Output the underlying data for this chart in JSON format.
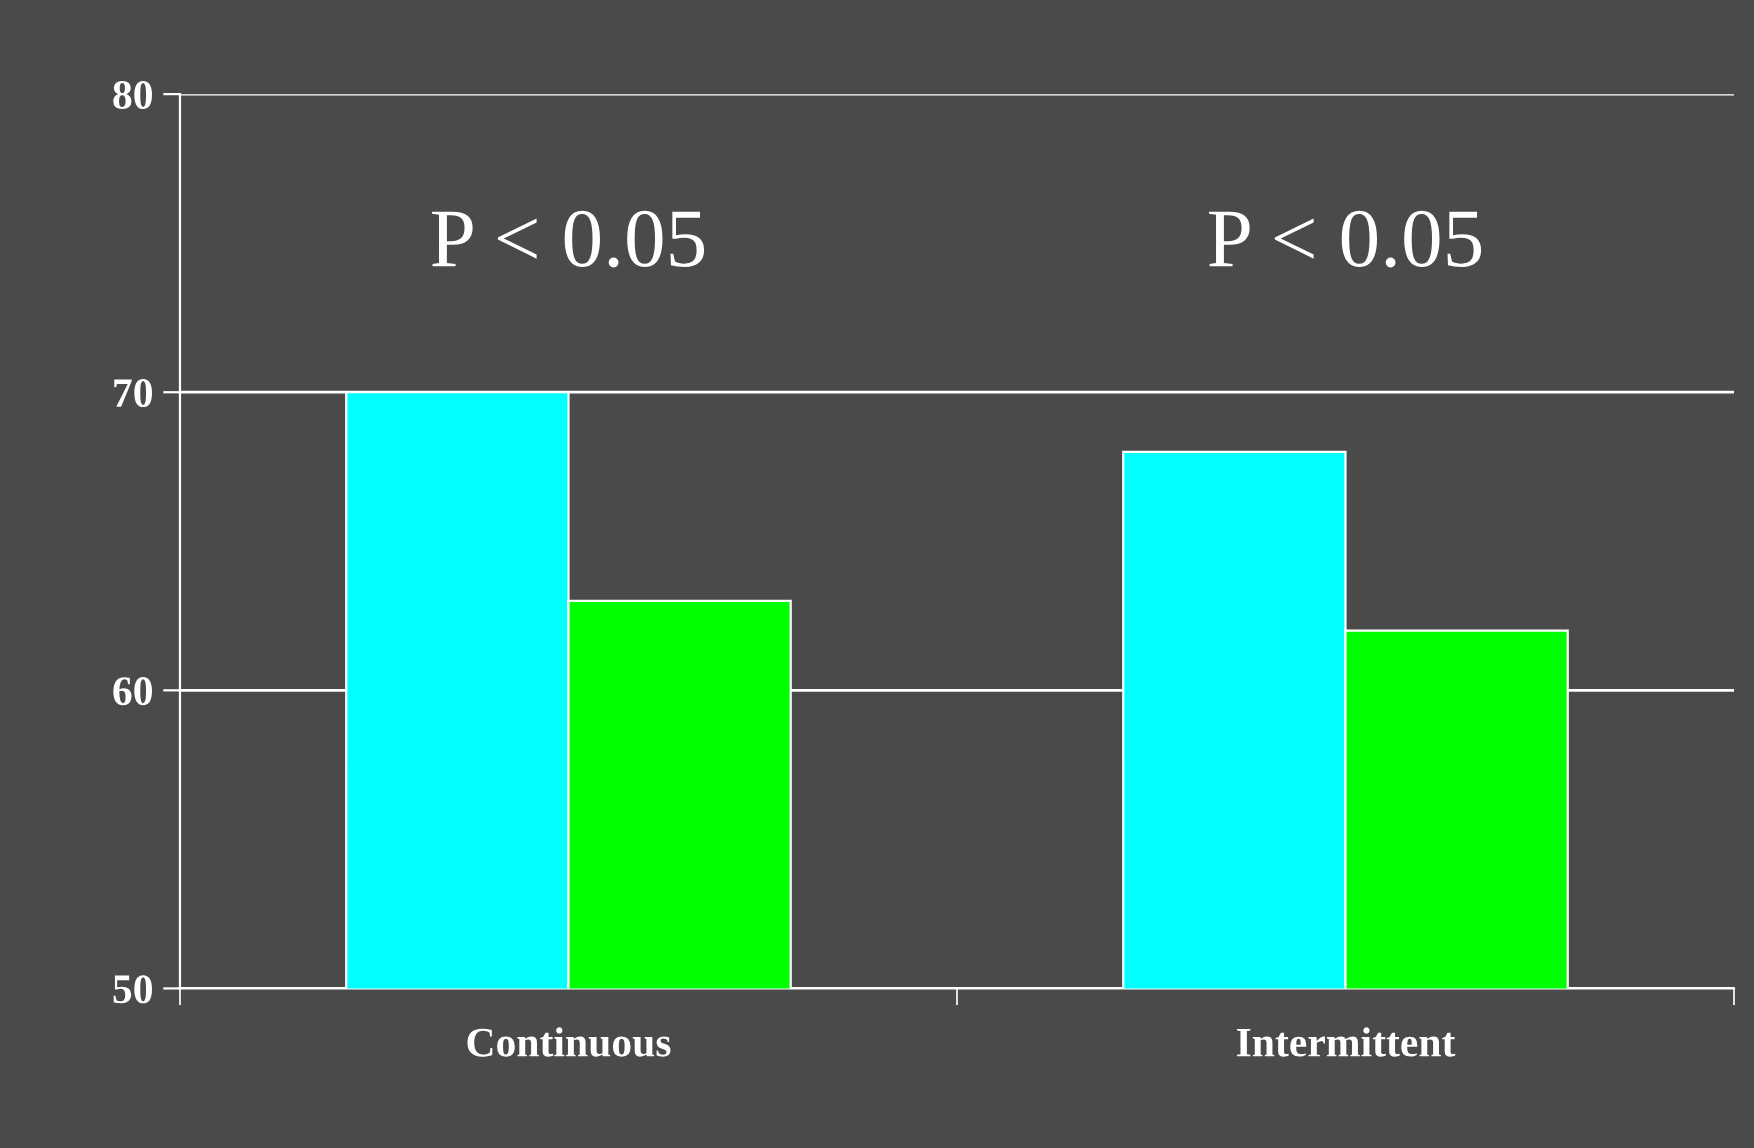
{
  "chart_data": {
    "type": "bar",
    "categories": [
      "Continuous",
      "Intermittent"
    ],
    "series": [
      {
        "color": "#00ffff",
        "values": [
          70,
          68
        ]
      },
      {
        "color": "#00ff00",
        "values": [
          63,
          62
        ]
      }
    ],
    "ylim": [
      50,
      80
    ],
    "yticks": [
      50,
      60,
      70,
      80
    ],
    "grid": "y",
    "annotations": [
      "P < 0.05",
      "P < 0.05"
    ]
  }
}
